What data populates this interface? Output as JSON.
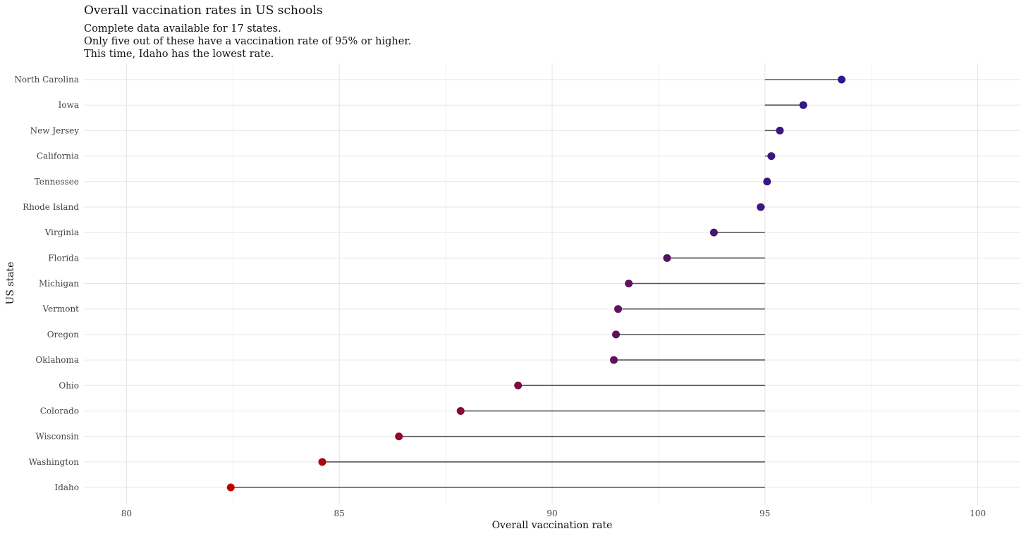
{
  "title": "Overall vaccination rates in US schools",
  "subtitle_lines": [
    "Complete data available for 17 states.",
    "Only five out of these have a vaccination rate of 95% or higher.",
    "This time, Idaho has the lowest rate."
  ],
  "chart_data": {
    "type": "lollipop",
    "xlabel": "Overall vaccination rate",
    "ylabel": "US state",
    "xlim": [
      79,
      101
    ],
    "x_ticks": [
      80,
      85,
      90,
      95,
      100
    ],
    "x_tick_labels": [
      "80",
      "85",
      "90",
      "95",
      "100"
    ],
    "reference_value": 95,
    "grid": true,
    "color_low": "#c00000",
    "color_high": "#2a1a8f",
    "segment_color": "#555555",
    "categories": [
      "North Carolina",
      "Iowa",
      "New Jersey",
      "California",
      "Tennessee",
      "Rhode Island",
      "Virginia",
      "Florida",
      "Michigan",
      "Vermont",
      "Oregon",
      "Oklahoma",
      "Ohio",
      "Colorado",
      "Wisconsin",
      "Washington",
      "Idaho"
    ],
    "values": [
      96.8,
      95.9,
      95.35,
      95.15,
      95.05,
      94.9,
      93.8,
      92.7,
      91.8,
      91.55,
      91.5,
      91.45,
      89.2,
      87.85,
      86.4,
      84.6,
      82.45
    ]
  }
}
